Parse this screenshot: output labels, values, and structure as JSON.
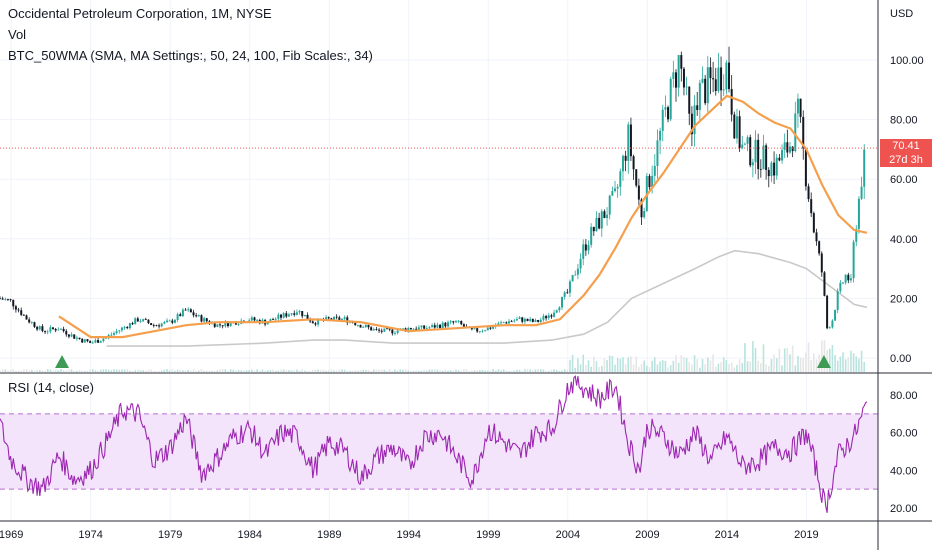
{
  "header": {
    "symbol_line": "Occidental Petroleum Corporation, 1M, NYSE",
    "volume_label": "Vol",
    "indicator_line": "BTC_50WMA (SMA, MA Settings:, 50, 24, 100, Fib Scales:, 34)",
    "rsi_label": "RSI (14, close)",
    "currency": "USD"
  },
  "last_price": {
    "value": "70.41",
    "countdown": "27d 3h"
  },
  "colors": {
    "price_up": "#26a69a",
    "price_down": "#131722",
    "ma_orange": "#f59f4c",
    "ma_grey": "#c9c9c9",
    "rsi_line": "#9c27b0",
    "rsi_band": "#f3e3fb",
    "marker": "#3e9a55",
    "last_price": "#ef5350"
  },
  "chart_data": [
    {
      "type": "candlestick",
      "title": "Occidental Petroleum Corporation, 1M, NYSE",
      "x_ticks": [
        "1969",
        "1974",
        "1979",
        "1984",
        "1989",
        "1994",
        "1999",
        "2004",
        "2009",
        "2014",
        "2019"
      ],
      "y_ticks": [
        "0.00",
        "20.00",
        "40.00",
        "60.00",
        "80.00",
        "100.00"
      ],
      "ylim": [
        -3,
        118
      ],
      "xlim": [
        1968.3,
        2023.5
      ],
      "scale": "linear",
      "grid": true,
      "close_path": {
        "x": [
          1968.3,
          1969,
          1970,
          1971,
          1972,
          1973,
          1974,
          1975,
          1976,
          1977,
          1978,
          1979,
          1980,
          1981,
          1982,
          1983,
          1984,
          1985,
          1986,
          1987,
          1988,
          1989,
          1990,
          1991,
          1992,
          1993,
          1994,
          1995,
          1996,
          1997,
          1998,
          1999,
          2000,
          2001,
          2002,
          2003,
          2004,
          2005,
          2005.5,
          2006,
          2007,
          2007.8,
          2008.3,
          2008.6,
          2009,
          2009.5,
          2010,
          2011,
          2011.4,
          2011.8,
          2012,
          2013,
          2014,
          2014.5,
          2015,
          2016,
          2017,
          2018,
          2018.5,
          2019,
          2019.5,
          2020,
          2020.3,
          2020.6,
          2021,
          2021.5,
          2021.8,
          2022,
          2022.5,
          2022.8
        ],
        "y": [
          20,
          19,
          13,
          9,
          10,
          7,
          5,
          7,
          10,
          13,
          11,
          12,
          16,
          13,
          11,
          12,
          13,
          12,
          14,
          16,
          12,
          13,
          13,
          11,
          9,
          9,
          10,
          10,
          11,
          12,
          9,
          10,
          12,
          13,
          12,
          15,
          22,
          37,
          42,
          46,
          54,
          74,
          58,
          48,
          58,
          68,
          79,
          100,
          88,
          72,
          88,
          92,
          98,
          78,
          70,
          68,
          64,
          72,
          82,
          60,
          42,
          28,
          10,
          12,
          22,
          28,
          25,
          40,
          62,
          70
        ]
      },
      "orange_ma": {
        "x": [
          1972,
          1974,
          1976,
          1978,
          1980,
          1982,
          1985,
          1988,
          1991,
          1994,
          1997,
          2000,
          2002,
          2003.5,
          2005,
          2006,
          2007,
          2008,
          2009,
          2010,
          2011,
          2012,
          2013,
          2014,
          2015,
          2016,
          2017,
          2018,
          2019,
          2020,
          2021,
          2022,
          2022.8
        ],
        "y": [
          14,
          7,
          7,
          9,
          11,
          12,
          12,
          13,
          12,
          9,
          10,
          11,
          11,
          13,
          21,
          28,
          37,
          47,
          55,
          62,
          70,
          78,
          83,
          88,
          86,
          82,
          79,
          77,
          70,
          58,
          48,
          43,
          42
        ]
      },
      "grey_ma": {
        "x": [
          1975,
          1980,
          1985,
          1988,
          1990,
          1993,
          1996,
          2000,
          2003,
          2005,
          2006.5,
          2008,
          2010,
          2012,
          2013.5,
          2014.5,
          2016,
          2018,
          2019,
          2020,
          2021,
          2022,
          2022.8
        ],
        "y": [
          4,
          4,
          5,
          6,
          6,
          5,
          5,
          5,
          6,
          8,
          12,
          20,
          25,
          30,
          34,
          36,
          35,
          32,
          30,
          26,
          22,
          18,
          17
        ]
      },
      "markers": [
        {
          "label": "buy-signal",
          "x": 1972.2,
          "y": 0
        },
        {
          "label": "buy-signal",
          "x": 2020.1,
          "y": 0
        }
      ]
    },
    {
      "type": "line",
      "title": "RSI (14, close)",
      "y_ticks": [
        "20.00",
        "40.00",
        "60.00",
        "80.00"
      ],
      "ylim": [
        15,
        92
      ],
      "band": [
        30,
        70
      ],
      "series": {
        "x": [
          1968.3,
          1969,
          1970,
          1971,
          1972,
          1973,
          1974,
          1975,
          1976,
          1977,
          1978,
          1979,
          1980,
          1981,
          1982,
          1983,
          1984,
          1985,
          1986,
          1987,
          1988,
          1989,
          1990,
          1991,
          1992,
          1993,
          1994,
          1995,
          1996,
          1997,
          1998,
          1999,
          2000,
          2001,
          2002,
          2003,
          2004,
          2004.5,
          2005,
          2006,
          2007,
          2007.8,
          2008.5,
          2009,
          2010,
          2011,
          2012,
          2013,
          2014,
          2015,
          2016,
          2017,
          2018,
          2019,
          2019.7,
          2020.2,
          2020.5,
          2021,
          2022,
          2022.8
        ],
        "y": [
          65,
          46,
          35,
          30,
          48,
          35,
          40,
          55,
          72,
          70,
          45,
          52,
          68,
          38,
          47,
          58,
          62,
          48,
          60,
          58,
          40,
          55,
          50,
          36,
          47,
          52,
          42,
          58,
          60,
          47,
          35,
          62,
          55,
          48,
          60,
          62,
          84,
          88,
          84,
          78,
          85,
          55,
          40,
          63,
          58,
          48,
          60,
          45,
          58,
          42,
          45,
          52,
          50,
          60,
          38,
          20,
          30,
          48,
          58,
          75
        ]
      }
    }
  ]
}
